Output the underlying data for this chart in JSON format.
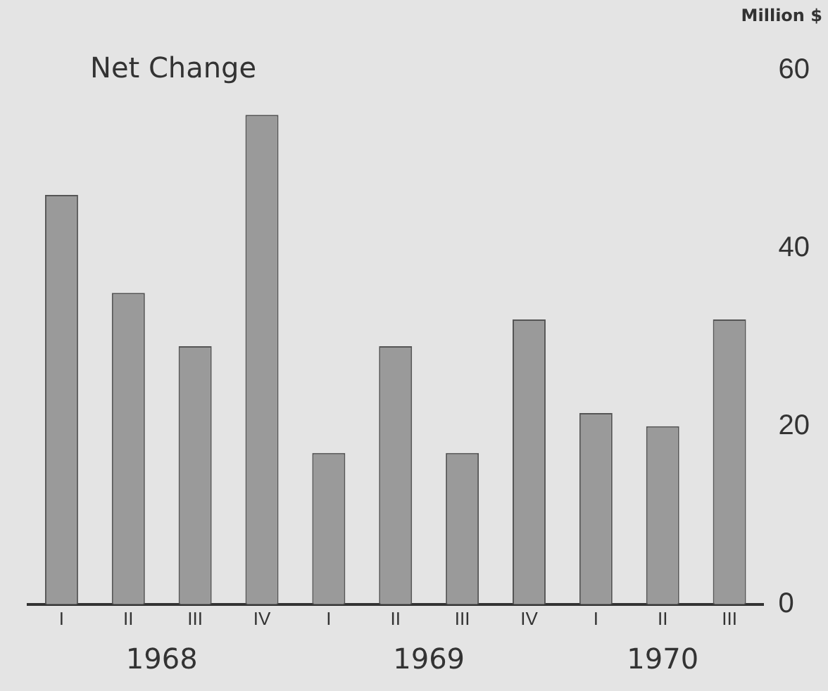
{
  "chart_data": {
    "type": "bar",
    "title": "Net Change",
    "ylabel": "Million $",
    "categories": [
      "I",
      "II",
      "III",
      "IV",
      "I",
      "II",
      "III",
      "IV",
      "I",
      "II",
      "III"
    ],
    "values": [
      46,
      35,
      29,
      55,
      17,
      29,
      17,
      32,
      21.5,
      20,
      32
    ],
    "color": "#9a9a9a",
    "ylim": [
      0,
      60
    ],
    "yticks": [
      0,
      20,
      40,
      60
    ],
    "grid": false,
    "legend": false,
    "annotations": [
      "1968",
      "1969",
      "1970"
    ]
  }
}
